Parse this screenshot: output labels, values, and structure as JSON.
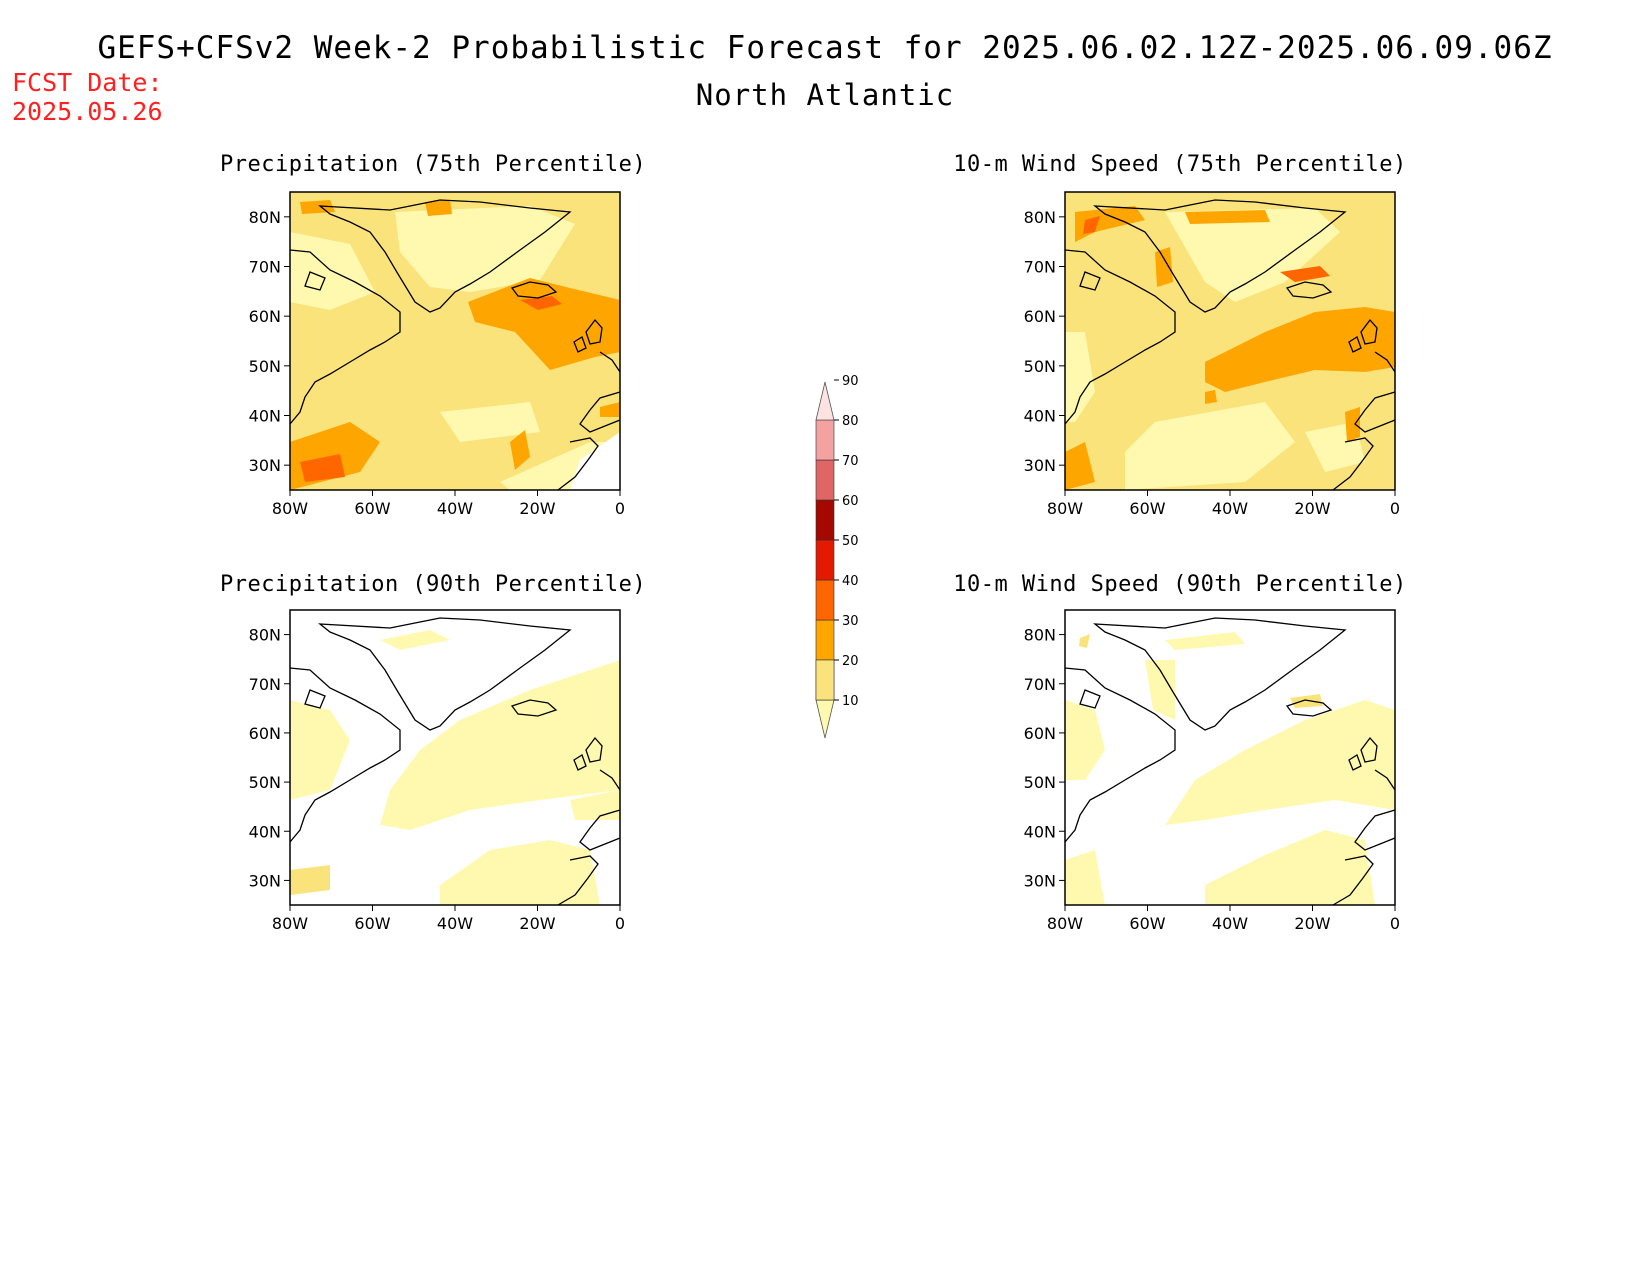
{
  "title": "GEFS+CFSv2 Week-2 Probabilistic Forecast for 2025.06.02.12Z-2025.06.09.06Z",
  "subtitle": "North Atlantic",
  "fcst_date_label": "FCST Date:",
  "fcst_date_value": "2025.05.26",
  "panels": [
    {
      "title": "Precipitation (75th Percentile)"
    },
    {
      "title": "10-m Wind Speed (75th Percentile)"
    },
    {
      "title": "Precipitation (90th Percentile)"
    },
    {
      "title": "10-m Wind Speed (90th Percentile)"
    }
  ],
  "lat_ticks": [
    "80N",
    "70N",
    "60N",
    "50N",
    "40N",
    "30N"
  ],
  "lon_ticks": [
    "80W",
    "60W",
    "40W",
    "20W",
    "0"
  ],
  "colorbar": {
    "levels": [
      "10",
      "20",
      "30",
      "40",
      "50",
      "60",
      "70",
      "80",
      "90"
    ],
    "colors": [
      "#fff9b0",
      "#fbe37c",
      "#ffa500",
      "#ff6600",
      "#e31a00",
      "#a50800",
      "#e06666",
      "#f4a1a1",
      "#fde2e2"
    ]
  },
  "colors": {
    "title_red": "#ff2020",
    "shade_10": "#fff9b0",
    "shade_20": "#fbe37c",
    "shade_30": "#ffa500",
    "shade_40": "#ff6600"
  }
}
